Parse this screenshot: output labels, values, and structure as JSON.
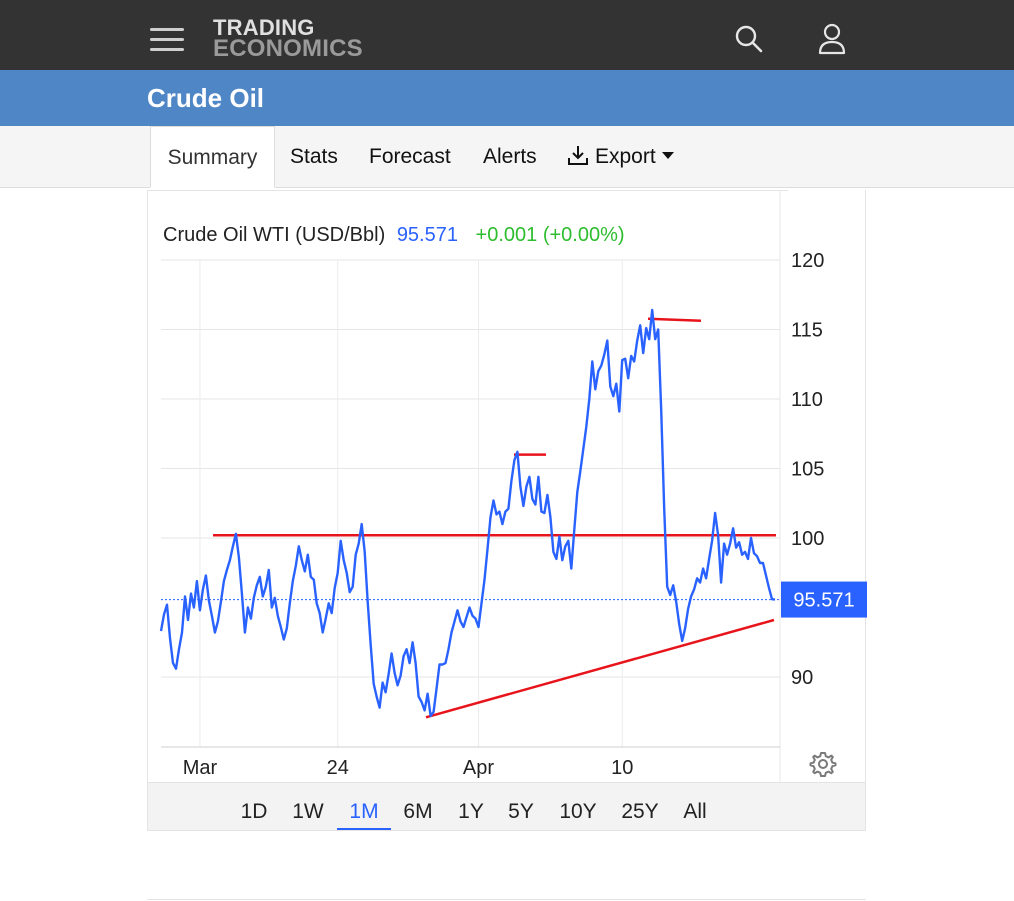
{
  "header": {
    "logo_line1": "TRADING",
    "logo_line2": "ECONOMICS",
    "icons": [
      "menu-icon",
      "search-icon",
      "user-icon"
    ]
  },
  "page": {
    "title": "Crude Oil"
  },
  "tabs": [
    {
      "label": "Summary",
      "active": true
    },
    {
      "label": "Stats"
    },
    {
      "label": "Forecast"
    },
    {
      "label": "Alerts"
    },
    {
      "label": "Export",
      "icon": "download-icon",
      "dropdown": true
    }
  ],
  "quote": {
    "name": "Crude Oil WTI (USD/Bbl)",
    "price": "95.571",
    "change": "+0.001 (+0.00%)"
  },
  "colors": {
    "series": "#2962ff",
    "change_positive": "#2ebd2e",
    "trendline": "#e8141b",
    "title_band": "#4f86c6",
    "topbar": "#333333"
  },
  "chart_data": {
    "type": "line",
    "ylim": [
      85,
      122
    ],
    "y_ticks": [
      120,
      115,
      110,
      105,
      100,
      90
    ],
    "x_ticks": [
      "Mar",
      "24",
      "Apr",
      "10"
    ],
    "last_value_label": "95.571",
    "last_value": 95.571,
    "series": [
      {
        "values": [
          93.3,
          94.5,
          95.2,
          92.8,
          91.0,
          90.6,
          92.0,
          93.2,
          95.8,
          94.1,
          96.0,
          95.0,
          96.9,
          94.8,
          96.3,
          97.3,
          95.5,
          94.4,
          93.2,
          94.0,
          95.4,
          96.9,
          97.7,
          98.4,
          99.4,
          100.3,
          98.6,
          96.0,
          93.2,
          95.0,
          94.2,
          95.7,
          96.6,
          97.2,
          95.8,
          96.5,
          97.7,
          95.0,
          95.7,
          94.4,
          93.6,
          92.7,
          93.5,
          95.3,
          96.9,
          98.0,
          99.4,
          98.4,
          97.6,
          98.8,
          97.2,
          97.0,
          95.3,
          94.6,
          93.2,
          94.2,
          95.3,
          94.6,
          96.4,
          97.5,
          99.8,
          98.4,
          97.5,
          96.1,
          96.5,
          98.8,
          99.6,
          101.0,
          99.0,
          95.4,
          92.3,
          89.5,
          88.6,
          87.8,
          89.6,
          88.9,
          90.2,
          91.7,
          90.3,
          89.4,
          90.1,
          91.5,
          92.0,
          91.0,
          92.5,
          91.0,
          88.6,
          88.2,
          87.6,
          88.8,
          87.2,
          87.5,
          89.2,
          90.9,
          90.9,
          91.0,
          92.0,
          93.2,
          94.0,
          94.8,
          94.0,
          93.6,
          94.3,
          95.0,
          94.4,
          94.2,
          93.6,
          95.3,
          97.0,
          99.2,
          101.5,
          102.7,
          101.7,
          101.9,
          101.0,
          101.9,
          102.1,
          104.1,
          105.6,
          106.2,
          103.7,
          102.3,
          103.7,
          104.4,
          102.8,
          102.4,
          104.4,
          101.9,
          101.8,
          103.1,
          101.5,
          99.0,
          98.5,
          100.1,
          98.4,
          99.4,
          99.8,
          97.8,
          100.6,
          103.3,
          104.8,
          106.4,
          108.0,
          110.0,
          112.7,
          110.7,
          112.0,
          112.4,
          113.2,
          114.2,
          110.9,
          110.2,
          111.1,
          109.1,
          112.8,
          112.9,
          111.5,
          113.1,
          112.7,
          114.2,
          115.3,
          113.3,
          115.1,
          114.3,
          116.4,
          114.3,
          115.0,
          109.2,
          102.1,
          96.5,
          95.9,
          96.6,
          95.4,
          93.8,
          92.6,
          93.5,
          94.9,
          95.8,
          96.3,
          97.1,
          96.8,
          97.8,
          97.1,
          98.5,
          99.8,
          101.8,
          100.2,
          96.8,
          99.6,
          98.8,
          99.6,
          100.7,
          99.3,
          99.7,
          98.8,
          99.0,
          98.5,
          100.0,
          98.9,
          98.7,
          98.2,
          98.2,
          97.3,
          96.4,
          95.6,
          95.571
        ]
      }
    ],
    "annotations": [
      {
        "type": "resistance",
        "y": 100.2
      },
      {
        "type": "peak-marker",
        "y": 106.0
      },
      {
        "type": "peak-marker",
        "y": 115.7
      },
      {
        "type": "support-trendline",
        "from": 87.1,
        "to": 94.1
      }
    ]
  },
  "range_buttons": [
    {
      "label": "1D"
    },
    {
      "label": "1W"
    },
    {
      "label": "1M",
      "active": true
    },
    {
      "label": "6M"
    },
    {
      "label": "1Y"
    },
    {
      "label": "5Y"
    },
    {
      "label": "10Y"
    },
    {
      "label": "25Y"
    },
    {
      "label": "All"
    }
  ]
}
